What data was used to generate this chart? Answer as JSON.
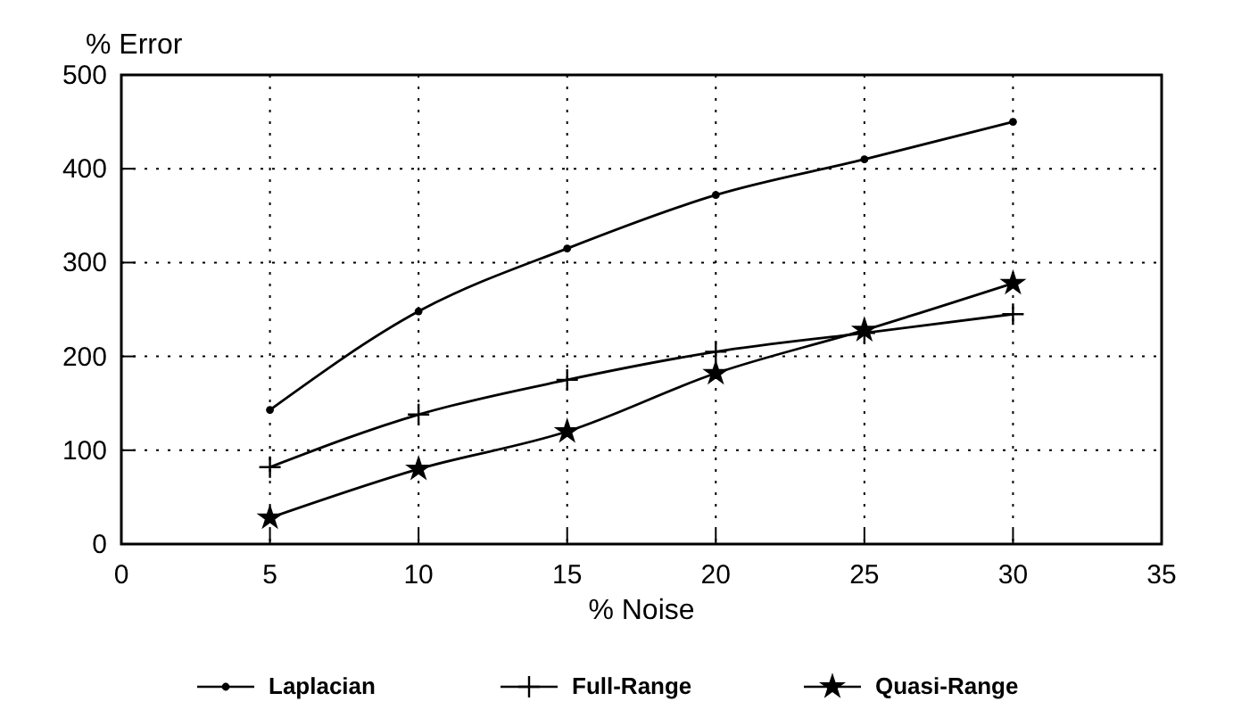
{
  "chart_data": {
    "type": "line",
    "ylabel": "% Error",
    "xlabel": "% Noise",
    "x": [
      5,
      10,
      15,
      20,
      25,
      30
    ],
    "series": [
      {
        "name": "Laplacian",
        "color": "#000000",
        "marker": "circle",
        "values": [
          143,
          248,
          315,
          372,
          410,
          450
        ]
      },
      {
        "name": "Full-Range",
        "color": "#000000",
        "marker": "cross",
        "values": [
          82,
          138,
          175,
          205,
          225,
          245
        ]
      },
      {
        "name": "Quasi-Range",
        "color": "#000000",
        "marker": "star",
        "values": [
          28,
          80,
          120,
          182,
          228,
          278
        ]
      }
    ],
    "xlim": [
      0,
      35
    ],
    "xticks": [
      0,
      5,
      10,
      15,
      20,
      25,
      30,
      35
    ],
    "ylim": [
      0,
      500
    ],
    "yticks": [
      0,
      100,
      200,
      300,
      400,
      500
    ],
    "grid": true,
    "legend": "bottom",
    "line_style": "solid"
  }
}
